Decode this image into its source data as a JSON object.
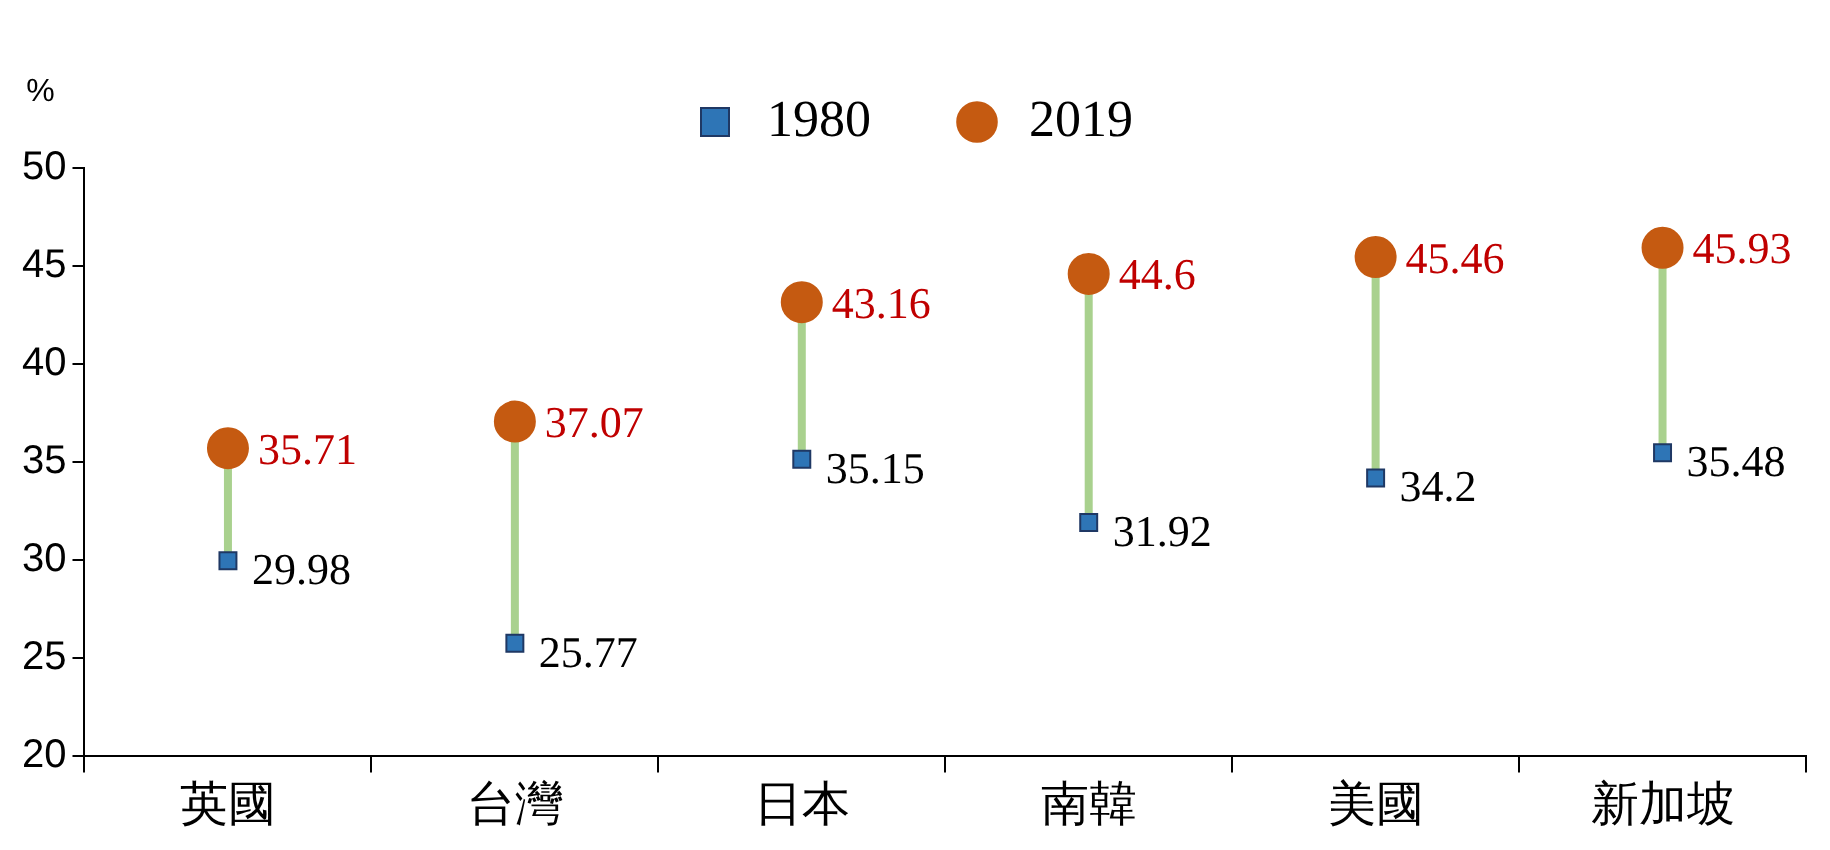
{
  "chart_data": {
    "type": "scatter",
    "ylabel": "%",
    "categories": [
      "英國",
      "台灣",
      "日本",
      "南韓",
      "美國",
      "新加坡"
    ],
    "series": [
      {
        "name": "1980",
        "color": "#2e75b6",
        "marker": "square",
        "values": [
          29.98,
          25.77,
          35.15,
          31.92,
          34.2,
          35.48
        ]
      },
      {
        "name": "2019",
        "color": "#c55a11",
        "marker": "circle",
        "values": [
          35.71,
          37.07,
          43.16,
          44.6,
          45.46,
          45.93
        ]
      }
    ],
    "ylim": [
      20,
      50
    ],
    "yticks": [
      20,
      25,
      30,
      35,
      40,
      45,
      50
    ],
    "grid": false,
    "legend": "top",
    "data_labels": true
  }
}
